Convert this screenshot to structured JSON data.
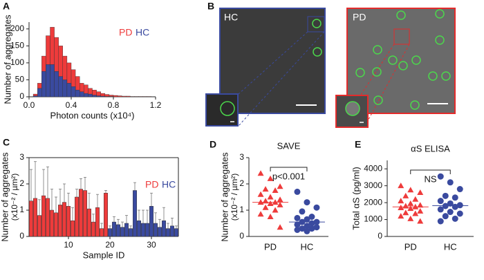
{
  "chart_data": [
    {
      "type": "histogram",
      "panel": "A",
      "xlabel": "Photon counts (x10⁴)",
      "ylabel": "Number of aggregates",
      "bins": [
        0.04,
        0.08,
        0.12,
        0.16,
        0.2,
        0.24,
        0.28,
        0.32,
        0.36,
        0.4,
        0.44,
        0.48,
        0.52,
        0.56,
        0.6,
        0.64,
        0.68,
        0.72,
        0.76,
        0.8,
        0.84,
        0.88,
        0.92,
        0.96,
        1.0,
        1.04,
        1.08,
        1.12,
        1.16
      ],
      "series": [
        {
          "name": "PD",
          "color": "#ee3b3b",
          "values": [
            8,
            40,
            120,
            180,
            205,
            175,
            150,
            120,
            100,
            80,
            60,
            40,
            35,
            25,
            20,
            15,
            10,
            7,
            5,
            4,
            3,
            2,
            2,
            1,
            1,
            1,
            1,
            1
          ]
        },
        {
          "name": "HC",
          "color": "#3a4a9f",
          "values": [
            3,
            25,
            75,
            95,
            95,
            75,
            60,
            50,
            40,
            30,
            20,
            15,
            10,
            8,
            5,
            3,
            2,
            1,
            1,
            0,
            0,
            0,
            0,
            0,
            0,
            0,
            0,
            0
          ]
        }
      ],
      "xlim": [
        0,
        1.2
      ],
      "xticks": [
        {
          "value": 0,
          "label": "0.0"
        },
        0.4,
        0.8,
        1.2
      ],
      "ylim": [
        0,
        220
      ],
      "yticks": [
        0,
        50,
        100,
        150,
        200
      ]
    },
    {
      "type": "bar",
      "panel": "C",
      "xlabel": "Sample ID",
      "ylabel": "Number of aggregates",
      "ylabel_unit": "(x10⁻² / µm²)",
      "series": [
        {
          "name": "PD",
          "color": "#ee3b3b",
          "x": [
            1,
            2,
            3,
            4,
            5,
            6,
            7,
            8,
            9,
            10,
            11,
            12,
            13,
            14,
            15,
            16,
            17,
            18,
            19
          ],
          "values": [
            1.35,
            1.45,
            0.8,
            1.55,
            1.45,
            1.0,
            0.9,
            1.2,
            1.3,
            1.15,
            0.6,
            1.5,
            1.8,
            1.75,
            1.05,
            0.55,
            1.1,
            0.3,
            1.65
          ],
          "errors": [
            1.2,
            1.4,
            0.6,
            1.0,
            1.2,
            0.8,
            0.6,
            0.6,
            0.7,
            0.5,
            0.5,
            0.3,
            0.4,
            0.5,
            0.6,
            0.3,
            0.5,
            0.2,
            0.1
          ]
        },
        {
          "name": "HC",
          "color": "#3a4a9f",
          "x": [
            20,
            21,
            22,
            23,
            24,
            25,
            26,
            27,
            28,
            29,
            30,
            31,
            32,
            33,
            34,
            35,
            36
          ],
          "values": [
            0.3,
            0.55,
            0.45,
            0.35,
            0.5,
            0.3,
            1.75,
            0.6,
            0.5,
            0.5,
            1.15,
            0.5,
            0.35,
            0.6,
            0.3,
            0.4,
            0.3
          ],
          "errors": [
            0.1,
            0.2,
            0.2,
            0.2,
            0.3,
            0.1,
            0.3,
            0.4,
            0.5,
            0.5,
            0.5,
            0.4,
            0.3,
            0.5,
            0.2,
            0.3,
            0.1
          ]
        }
      ],
      "xlim": [
        0.5,
        36.5
      ],
      "xticks": [
        10,
        20,
        30
      ],
      "ylim": [
        0,
        3
      ],
      "yticks": [
        0,
        1,
        2,
        3
      ]
    },
    {
      "type": "strip",
      "panel": "D",
      "title": "SAVE",
      "annotation": "p<0.001",
      "ylabel": "Number of aggregates",
      "ylabel_unit": "(x10⁻² / µm²)",
      "categories": [
        "PD",
        "HC"
      ],
      "series": [
        {
          "name": "PD",
          "color": "#ee3b3b",
          "marker": "triangle",
          "median": 1.3,
          "values": [
            2.4,
            2.2,
            1.9,
            1.8,
            1.75,
            1.6,
            1.5,
            1.4,
            1.35,
            1.3,
            1.3,
            1.25,
            1.2,
            1.1,
            1.0,
            0.85,
            0.75,
            0.35
          ]
        },
        {
          "name": "HC",
          "color": "#3a4a9f",
          "marker": "circle",
          "median": 0.55,
          "values": [
            1.7,
            1.3,
            1.1,
            0.95,
            0.75,
            0.7,
            0.65,
            0.55,
            0.55,
            0.5,
            0.45,
            0.4,
            0.35,
            0.3,
            0.3,
            0.25,
            0.2
          ]
        }
      ],
      "ylim": [
        0,
        3
      ],
      "yticks": [
        0,
        1,
        2,
        3
      ]
    },
    {
      "type": "strip",
      "panel": "E",
      "title": "αS ELISA",
      "annotation": "NS",
      "ylabel": "Total αS (pg/ml)",
      "categories": [
        "PD",
        "HC"
      ],
      "series": [
        {
          "name": "PD",
          "color": "#ee3b3b",
          "marker": "triangle",
          "median": 1750,
          "values": [
            3000,
            2750,
            2600,
            2400,
            2200,
            2100,
            1950,
            1850,
            1800,
            1750,
            1700,
            1650,
            1500,
            1400,
            1350,
            1200,
            1050,
            900
          ]
        },
        {
          "name": "HC",
          "color": "#3a4a9f",
          "marker": "circle",
          "median": 1820,
          "values": [
            3550,
            3200,
            2800,
            2400,
            2300,
            2100,
            1950,
            1850,
            1800,
            1750,
            1600,
            1450,
            1350,
            1200,
            1050,
            900
          ]
        }
      ],
      "ylim": [
        0,
        4500
      ],
      "yticks": [
        0,
        1000,
        2000,
        3000,
        4000
      ]
    }
  ],
  "panel_b": {
    "letter": "B",
    "left_label": "HC",
    "right_label": "PD"
  }
}
